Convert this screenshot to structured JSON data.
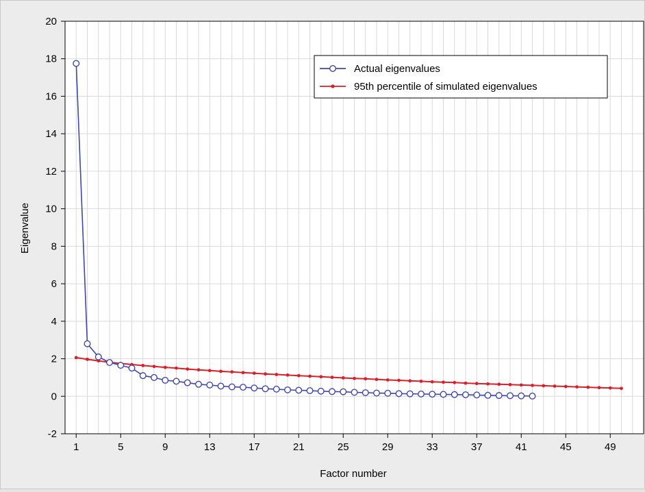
{
  "chart_data": {
    "type": "line",
    "title": "",
    "xlabel": "Factor number",
    "ylabel": "Eigenvalue",
    "xlim": [
      0,
      52
    ],
    "ylim": [
      -2,
      20
    ],
    "xticks": [
      1,
      5,
      9,
      13,
      17,
      21,
      25,
      29,
      33,
      37,
      41,
      45,
      49
    ],
    "yticks": [
      -2,
      0,
      2,
      4,
      6,
      8,
      10,
      12,
      14,
      16,
      18,
      20
    ],
    "grid": true,
    "legend_position": "top-right",
    "series": [
      {
        "name": "Actual eigenvalues",
        "color": "#3f47a8",
        "marker": "open-circle",
        "x": [
          1,
          2,
          3,
          4,
          5,
          6,
          7,
          8,
          9,
          10,
          11,
          12,
          13,
          14,
          15,
          16,
          17,
          18,
          19,
          20,
          21,
          22,
          23,
          24,
          25,
          26,
          27,
          28,
          29,
          30,
          31,
          32,
          33,
          34,
          35,
          36,
          37,
          38,
          39,
          40,
          41,
          42
        ],
        "values": [
          17.75,
          2.8,
          2.1,
          1.8,
          1.65,
          1.5,
          1.1,
          1.0,
          0.85,
          0.8,
          0.72,
          0.64,
          0.6,
          0.54,
          0.5,
          0.48,
          0.44,
          0.4,
          0.38,
          0.34,
          0.32,
          0.3,
          0.27,
          0.25,
          0.24,
          0.21,
          0.19,
          0.17,
          0.16,
          0.14,
          0.13,
          0.12,
          0.11,
          0.1,
          0.09,
          0.08,
          0.07,
          0.05,
          0.04,
          0.03,
          0.02,
          0.01
        ]
      },
      {
        "name": "95th percentile of simulated eigenvalues",
        "color": "#d6202a",
        "marker": "filled-dot",
        "x": [
          1,
          2,
          3,
          4,
          5,
          6,
          7,
          8,
          9,
          10,
          11,
          12,
          13,
          14,
          15,
          16,
          17,
          18,
          19,
          20,
          21,
          22,
          23,
          24,
          25,
          26,
          27,
          28,
          29,
          30,
          31,
          32,
          33,
          34,
          35,
          36,
          37,
          38,
          39,
          40,
          41,
          42,
          43,
          44,
          45,
          46,
          47,
          48,
          49,
          50
        ],
        "values": [
          2.06,
          1.97,
          1.89,
          1.81,
          1.75,
          1.69,
          1.64,
          1.59,
          1.54,
          1.5,
          1.45,
          1.41,
          1.37,
          1.33,
          1.3,
          1.26,
          1.23,
          1.19,
          1.16,
          1.13,
          1.1,
          1.07,
          1.04,
          1.01,
          0.98,
          0.95,
          0.93,
          0.9,
          0.87,
          0.85,
          0.82,
          0.8,
          0.77,
          0.75,
          0.73,
          0.7,
          0.68,
          0.66,
          0.64,
          0.62,
          0.6,
          0.58,
          0.56,
          0.54,
          0.52,
          0.5,
          0.48,
          0.46,
          0.44,
          0.42
        ]
      }
    ]
  }
}
